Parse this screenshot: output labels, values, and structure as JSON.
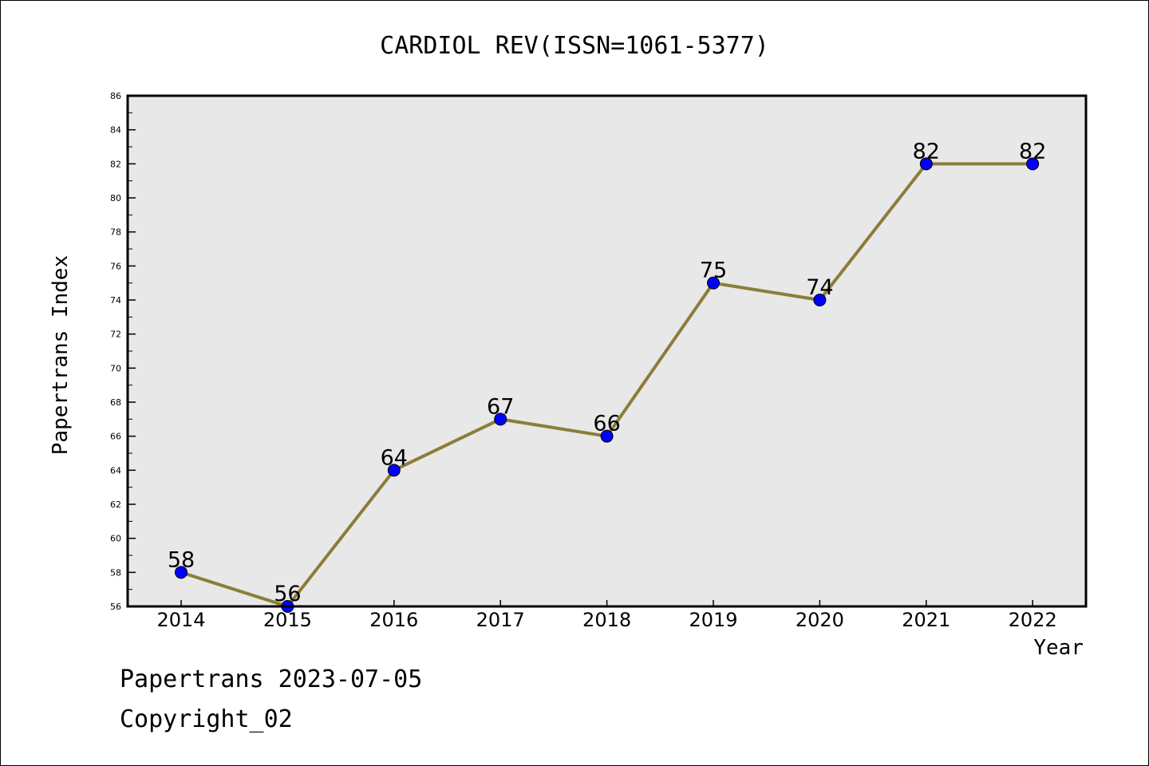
{
  "chart_data": {
    "type": "line",
    "title": "CARDIOL REV(ISSN=1061-5377)",
    "xlabel": "Year",
    "ylabel": "Papertrans Index",
    "x": [
      "2014",
      "2015",
      "2016",
      "2017",
      "2018",
      "2019",
      "2020",
      "2021",
      "2022"
    ],
    "series": [
      {
        "values": [
          58,
          56,
          64,
          67,
          66,
          75,
          74,
          82,
          82
        ],
        "data_labels": [
          "58",
          "56",
          "64",
          "67",
          "66",
          "75",
          "74",
          "82",
          "82"
        ]
      }
    ],
    "ylim": [
      56,
      86
    ],
    "y_ticks": [
      "56",
      "58",
      "60",
      "62",
      "64",
      "66",
      "68",
      "70",
      "72",
      "74",
      "76",
      "78",
      "80",
      "82",
      "84",
      "86"
    ],
    "grid": false,
    "legend": "none",
    "colors": {
      "line": "#8B7D3A",
      "marker": "#0000FF",
      "plot_background": "#E8E8E8"
    }
  },
  "footer": {
    "date_line": "Papertrans 2023-07-05",
    "copyright": "Copyright_02"
  }
}
